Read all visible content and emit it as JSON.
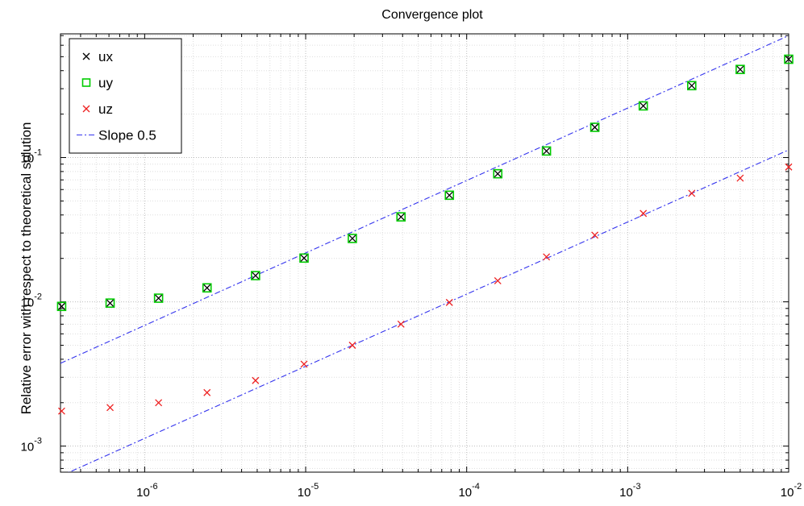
{
  "chart_data": {
    "type": "scatter",
    "title": "Convergence plot",
    "xlabel": "",
    "ylabel": "Relative error with respect to theoretical solution",
    "xscale": "log",
    "yscale": "log",
    "xlim": [
      3e-07,
      0.01
    ],
    "ylim": [
      0.00066,
      0.72
    ],
    "grid": "major and minor",
    "legend_position": "top-left",
    "x_ticks": [
      {
        "value": 1e-06,
        "base": "10",
        "exp": "-6"
      },
      {
        "value": 1e-05,
        "base": "10",
        "exp": "-5"
      },
      {
        "value": 0.0001,
        "base": "10",
        "exp": "-4"
      },
      {
        "value": 0.001,
        "base": "10",
        "exp": "-3"
      },
      {
        "value": 0.01,
        "base": "10",
        "exp": "-2"
      }
    ],
    "y_ticks": [
      {
        "value": 0.001,
        "base": "10",
        "exp": "-3"
      },
      {
        "value": 0.01,
        "base": "10",
        "exp": "-2"
      },
      {
        "value": 0.1,
        "base": "10",
        "exp": "-1"
      }
    ],
    "x": [
      3.05e-07,
      6.1e-07,
      1.22e-06,
      2.44e-06,
      4.88e-06,
      9.77e-06,
      1.95e-05,
      3.91e-05,
      7.81e-05,
      0.000156,
      0.000313,
      0.000625,
      0.00125,
      0.0025,
      0.005,
      0.01
    ],
    "series": [
      {
        "name": "ux",
        "marker": "x",
        "color": "#000000",
        "values": [
          0.0093,
          0.0098,
          0.0106,
          0.0125,
          0.0152,
          0.0201,
          0.0275,
          0.0388,
          0.0548,
          0.0772,
          0.111,
          0.162,
          0.228,
          0.315,
          0.408,
          0.48
        ]
      },
      {
        "name": "uy",
        "marker": "square",
        "color": "#00cc00",
        "values": [
          0.0093,
          0.0098,
          0.0106,
          0.0125,
          0.0152,
          0.0201,
          0.0275,
          0.0388,
          0.0548,
          0.0772,
          0.111,
          0.162,
          0.228,
          0.315,
          0.408,
          0.48
        ]
      },
      {
        "name": "uz",
        "marker": "x",
        "color": "#ee2222",
        "values": [
          0.00175,
          0.00185,
          0.002,
          0.00235,
          0.00285,
          0.0037,
          0.005,
          0.007,
          0.0099,
          0.014,
          0.0205,
          0.029,
          0.041,
          0.0565,
          0.072,
          0.086
        ]
      }
    ],
    "reference_lines": [
      {
        "name": "Slope 0.5",
        "style": "dash-dot",
        "color": "#3333ee",
        "slope": 0.5,
        "points": [
          [
            3e-07,
            0.00375
          ],
          [
            0.01,
            0.7
          ]
        ]
      },
      {
        "name": "",
        "style": "dash-dot",
        "color": "#3333ee",
        "slope": 0.5,
        "points": [
          [
            3e-07,
            0.00062
          ],
          [
            0.01,
            0.113
          ]
        ]
      }
    ]
  }
}
